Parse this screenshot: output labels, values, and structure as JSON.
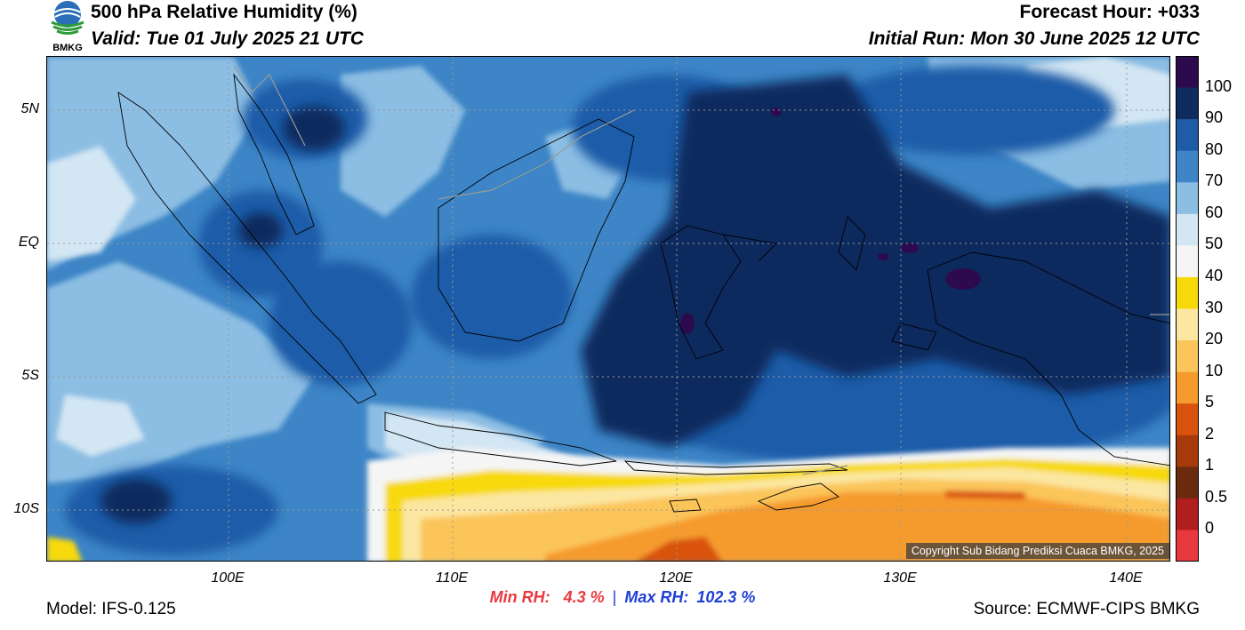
{
  "header": {
    "title": "500 hPa Relative Humidity (%)",
    "valid": "Valid: Tue 01 July 2025 21 UTC",
    "forecast_hour": "Forecast Hour: +033",
    "initial_run": "Initial Run: Mon 30 June 2025 12 UTC",
    "logo_text": "BMKG"
  },
  "map": {
    "lat_labels": [
      "5N",
      "EQ",
      "5S",
      "10S"
    ],
    "lon_labels": [
      "100E",
      "110E",
      "120E",
      "130E",
      "140E"
    ],
    "copyright": "Copyright Sub Bidang Prediksi Cuaca BMKG, 2025"
  },
  "legend": {
    "labels": [
      "100",
      "90",
      "80",
      "70",
      "60",
      "50",
      "40",
      "30",
      "20",
      "10",
      "5",
      "2",
      "1",
      "0.5",
      "0"
    ],
    "colors": [
      "#2d0a4e",
      "#0e2c5e",
      "#1f5ca8",
      "#3d85c6",
      "#8cbde3",
      "#d3e6f3",
      "#f5f5f5",
      "#f7d90a",
      "#fbe7a1",
      "#fbc55a",
      "#f59b2e",
      "#d9530f",
      "#a63a0a",
      "#6b2a0e",
      "#b11e1e",
      "#e8393f"
    ]
  },
  "stats": {
    "min_label": "Min RH:",
    "min_value": "4.3 %",
    "separator": "|",
    "max_label": "Max RH:",
    "max_value": "102.3 %"
  },
  "footer": {
    "model": "Model: IFS-0.125",
    "source": "Source: ECMWF-CIPS BMKG"
  }
}
